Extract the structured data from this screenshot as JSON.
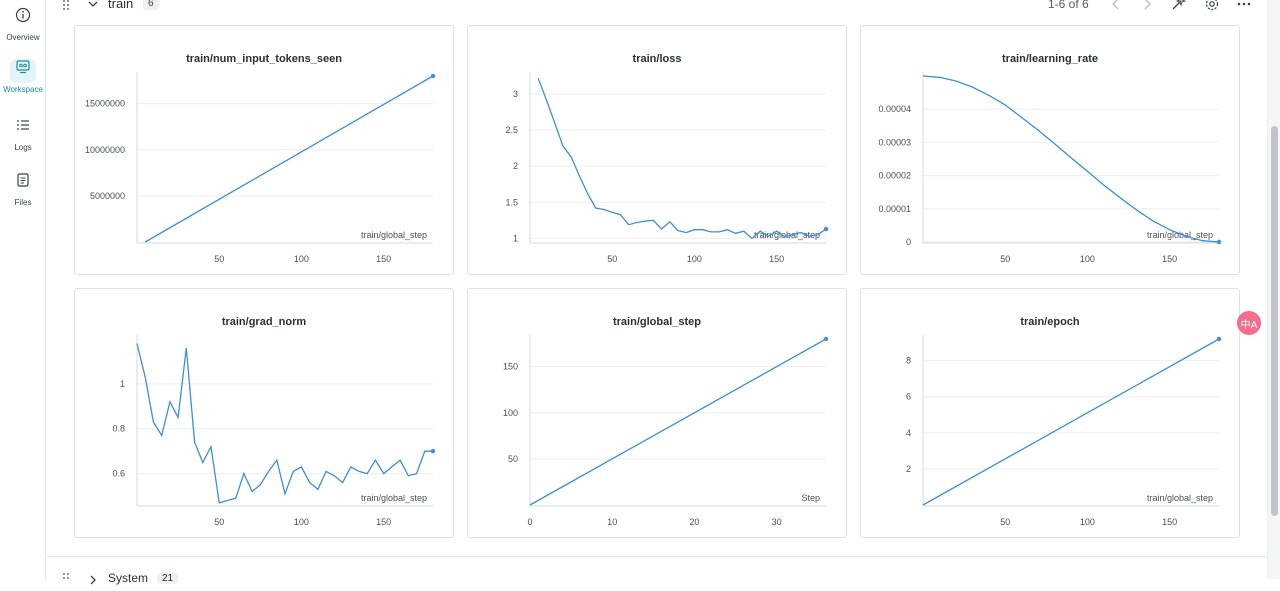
{
  "sidebar": {
    "items": [
      {
        "label": "Overview",
        "icon": "info-circle-icon",
        "active": false
      },
      {
        "label": "Workspace",
        "icon": "workspace-icon",
        "active": true
      },
      {
        "label": "Logs",
        "icon": "list-icon",
        "active": false
      },
      {
        "label": "Files",
        "icon": "file-icon",
        "active": false
      }
    ]
  },
  "section": {
    "title": "train",
    "count": "6",
    "pager": "1-6 of 6",
    "footer_title": "System",
    "footer_count": "21"
  },
  "floating_button": {
    "label": "中A"
  },
  "colors": {
    "series": "#3d8fd6",
    "accent": "#1b8fa6"
  },
  "chart_data": [
    {
      "type": "line",
      "title": "train/num_input_tokens_seen",
      "xlabel": "train/global_step",
      "xticks": [
        50,
        100,
        150
      ],
      "yticks": [
        5000000,
        10000000,
        15000000
      ],
      "ytick_labels": [
        "5000000",
        "10000000",
        "15000000"
      ],
      "xlim": [
        0,
        180
      ],
      "ylim": [
        0,
        18000000
      ],
      "x": [
        5,
        180
      ],
      "y": [
        0,
        18000000
      ]
    },
    {
      "type": "line",
      "title": "train/loss",
      "xlabel": "train/global_step",
      "xticks": [
        50,
        100,
        150
      ],
      "yticks": [
        1,
        1.5,
        2,
        2.5,
        3
      ],
      "ytick_labels": [
        "1",
        "1.5",
        "2",
        "2.5",
        "3"
      ],
      "xlim": [
        0,
        180
      ],
      "ylim": [
        0.95,
        3.25
      ],
      "x": [
        5,
        10,
        15,
        20,
        25,
        30,
        35,
        40,
        45,
        50,
        55,
        60,
        65,
        70,
        75,
        80,
        85,
        90,
        95,
        100,
        105,
        110,
        115,
        120,
        125,
        130,
        135,
        140,
        145,
        150,
        155,
        160,
        165,
        170,
        175,
        180
      ],
      "y": [
        3.22,
        2.92,
        2.6,
        2.28,
        2.13,
        1.87,
        1.62,
        1.42,
        1.4,
        1.36,
        1.33,
        1.19,
        1.22,
        1.24,
        1.25,
        1.13,
        1.23,
        1.11,
        1.08,
        1.12,
        1.12,
        1.09,
        1.09,
        1.12,
        1.07,
        1.1,
        1.0,
        1.1,
        1.03,
        1.1,
        1.02,
        1.06,
        1.08,
        1.03,
        1.05,
        1.13
      ]
    },
    {
      "type": "line",
      "title": "train/learning_rate",
      "xlabel": "train/global_step",
      "xticks": [
        50,
        100,
        150
      ],
      "yticks": [
        0,
        1e-05,
        2e-05,
        3e-05,
        4e-05
      ],
      "ytick_labels": [
        "0",
        "0.00001",
        "0.00002",
        "0.00003",
        "0.00004"
      ],
      "xlim": [
        0,
        180
      ],
      "ylim": [
        0,
        5e-05
      ],
      "x": [
        0,
        10,
        20,
        30,
        40,
        50,
        60,
        70,
        80,
        90,
        100,
        110,
        120,
        130,
        140,
        150,
        160,
        170,
        180
      ],
      "y": [
        5e-05,
        4.96e-05,
        4.85e-05,
        4.67e-05,
        4.42e-05,
        4.13e-05,
        3.75e-05,
        3.37e-05,
        2.96e-05,
        2.54e-05,
        2.13e-05,
        1.71e-05,
        1.33e-05,
        9.6e-06,
        6.3e-06,
        3.7e-06,
        1.7e-06,
        4e-07,
        0
      ]
    },
    {
      "type": "line",
      "title": "train/grad_norm",
      "xlabel": "train/global_step",
      "xticks": [
        50,
        100,
        150
      ],
      "yticks": [
        0.6,
        0.8,
        1
      ],
      "ytick_labels": [
        "0.6",
        "0.8",
        "1"
      ],
      "xlim": [
        0,
        180
      ],
      "ylim": [
        0.46,
        1.2
      ],
      "x": [
        0,
        5,
        10,
        15,
        20,
        25,
        30,
        35,
        40,
        45,
        50,
        55,
        60,
        65,
        70,
        75,
        80,
        85,
        90,
        95,
        100,
        105,
        110,
        115,
        120,
        125,
        130,
        135,
        140,
        145,
        150,
        155,
        160,
        165,
        170,
        175,
        180
      ],
      "y": [
        1.18,
        1.03,
        0.83,
        0.77,
        0.92,
        0.85,
        1.16,
        0.74,
        0.65,
        0.72,
        0.47,
        0.48,
        0.49,
        0.6,
        0.52,
        0.55,
        0.61,
        0.66,
        0.51,
        0.61,
        0.63,
        0.56,
        0.53,
        0.61,
        0.59,
        0.56,
        0.63,
        0.61,
        0.6,
        0.66,
        0.6,
        0.63,
        0.66,
        0.59,
        0.6,
        0.7,
        0.7
      ]
    },
    {
      "type": "line",
      "title": "train/global_step",
      "xlabel": "Step",
      "xticks": [
        0,
        10,
        20,
        30
      ],
      "yticks": [
        50,
        100,
        150
      ],
      "ytick_labels": [
        "50",
        "100",
        "150"
      ],
      "xlim": [
        0,
        36
      ],
      "ylim": [
        0,
        180
      ],
      "x": [
        0,
        36
      ],
      "y": [
        0,
        180
      ]
    },
    {
      "type": "line",
      "title": "train/epoch",
      "xlabel": "train/global_step",
      "xticks": [
        50,
        100,
        150
      ],
      "yticks": [
        2,
        4,
        6,
        8
      ],
      "ytick_labels": [
        "2",
        "4",
        "6",
        "8"
      ],
      "xlim": [
        0,
        180
      ],
      "ylim": [
        0,
        9.2
      ],
      "x": [
        0,
        180
      ],
      "y": [
        0,
        9.2
      ]
    }
  ]
}
